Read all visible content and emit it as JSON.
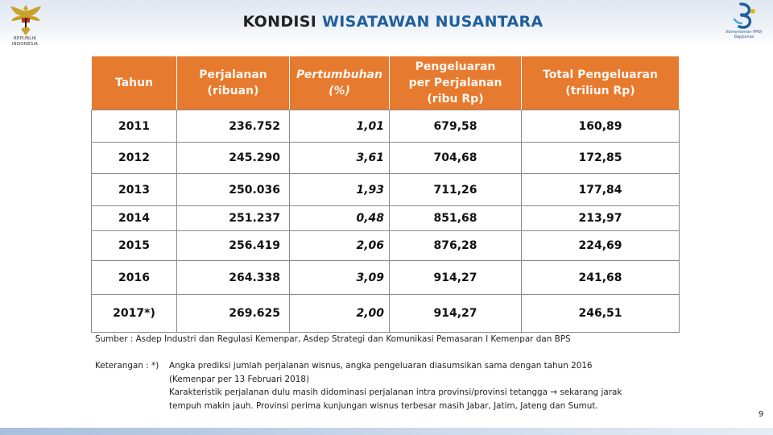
{
  "header": {
    "title_part1": "KONDISI ",
    "title_part2": "WISATAWAN NUSANTARA",
    "left_logo_text": "REPUBLIK INDONESIA",
    "right_logo_text": "Kementerian PPN/ Bappenas"
  },
  "table": {
    "columns": [
      {
        "lines": [
          "Tahun"
        ]
      },
      {
        "lines": [
          "Perjalanan",
          "(ribuan)"
        ]
      },
      {
        "lines": [
          "Pertumbuhan",
          "(%)"
        ]
      },
      {
        "lines": [
          "Pengeluaran",
          "per Perjalanan",
          "(ribu Rp)"
        ]
      },
      {
        "lines": [
          "Total Pengeluaran",
          "(triliun Rp)"
        ]
      }
    ],
    "rows": [
      {
        "year": "2011",
        "trips": "236.752",
        "growth": "1,01",
        "spend": "679,58",
        "total": "160,89"
      },
      {
        "year": "2012",
        "trips": "245.290",
        "growth": "3,61",
        "spend": "704,68",
        "total": "172,85"
      },
      {
        "year": "2013",
        "trips": "250.036",
        "growth": "1,93",
        "spend": "711,26",
        "total": "177,84"
      },
      {
        "year": "2014",
        "trips": "251.237",
        "growth": "0,48",
        "spend": "851,68",
        "total": "213,97"
      },
      {
        "year": "2015",
        "trips": "256.419",
        "growth": "2,06",
        "spend": "876,28",
        "total": "224,69"
      },
      {
        "year": "2016",
        "trips": "264.338",
        "growth": "3,09",
        "spend": "914,27",
        "total": "241,68"
      },
      {
        "year": "2017*)",
        "trips": "269.625",
        "growth": "2,00",
        "spend": "914,27",
        "total": "246,51"
      }
    ]
  },
  "source": "Sumber : Asdep Industri dan Regulasi Kemenpar, Asdep Strategi dan Komunikasi Pemasaran I Kemenpar dan BPS",
  "note": {
    "label": "Keterangan : *)",
    "line1": "Angka prediksi jumlah perjalanan wisnus, angka pengeluaran diasumsikan sama dengan tahun 2016",
    "line2": "(Kemenpar per 13 Februari 2018)",
    "line3": "Karakteristik perjalanan dulu masih didominasi perjalanan intra provinsi/provinsi tetangga → sekarang jarak",
    "line4": "tempuh makin jauh. Provinsi perima kunjungan wisnus terbesar masih Jabar, Jatim, Jateng dan Sumut."
  },
  "page_number": "9",
  "colors": {
    "header_orange": "#e67a2e",
    "title_blue": "#1f5f9c"
  }
}
